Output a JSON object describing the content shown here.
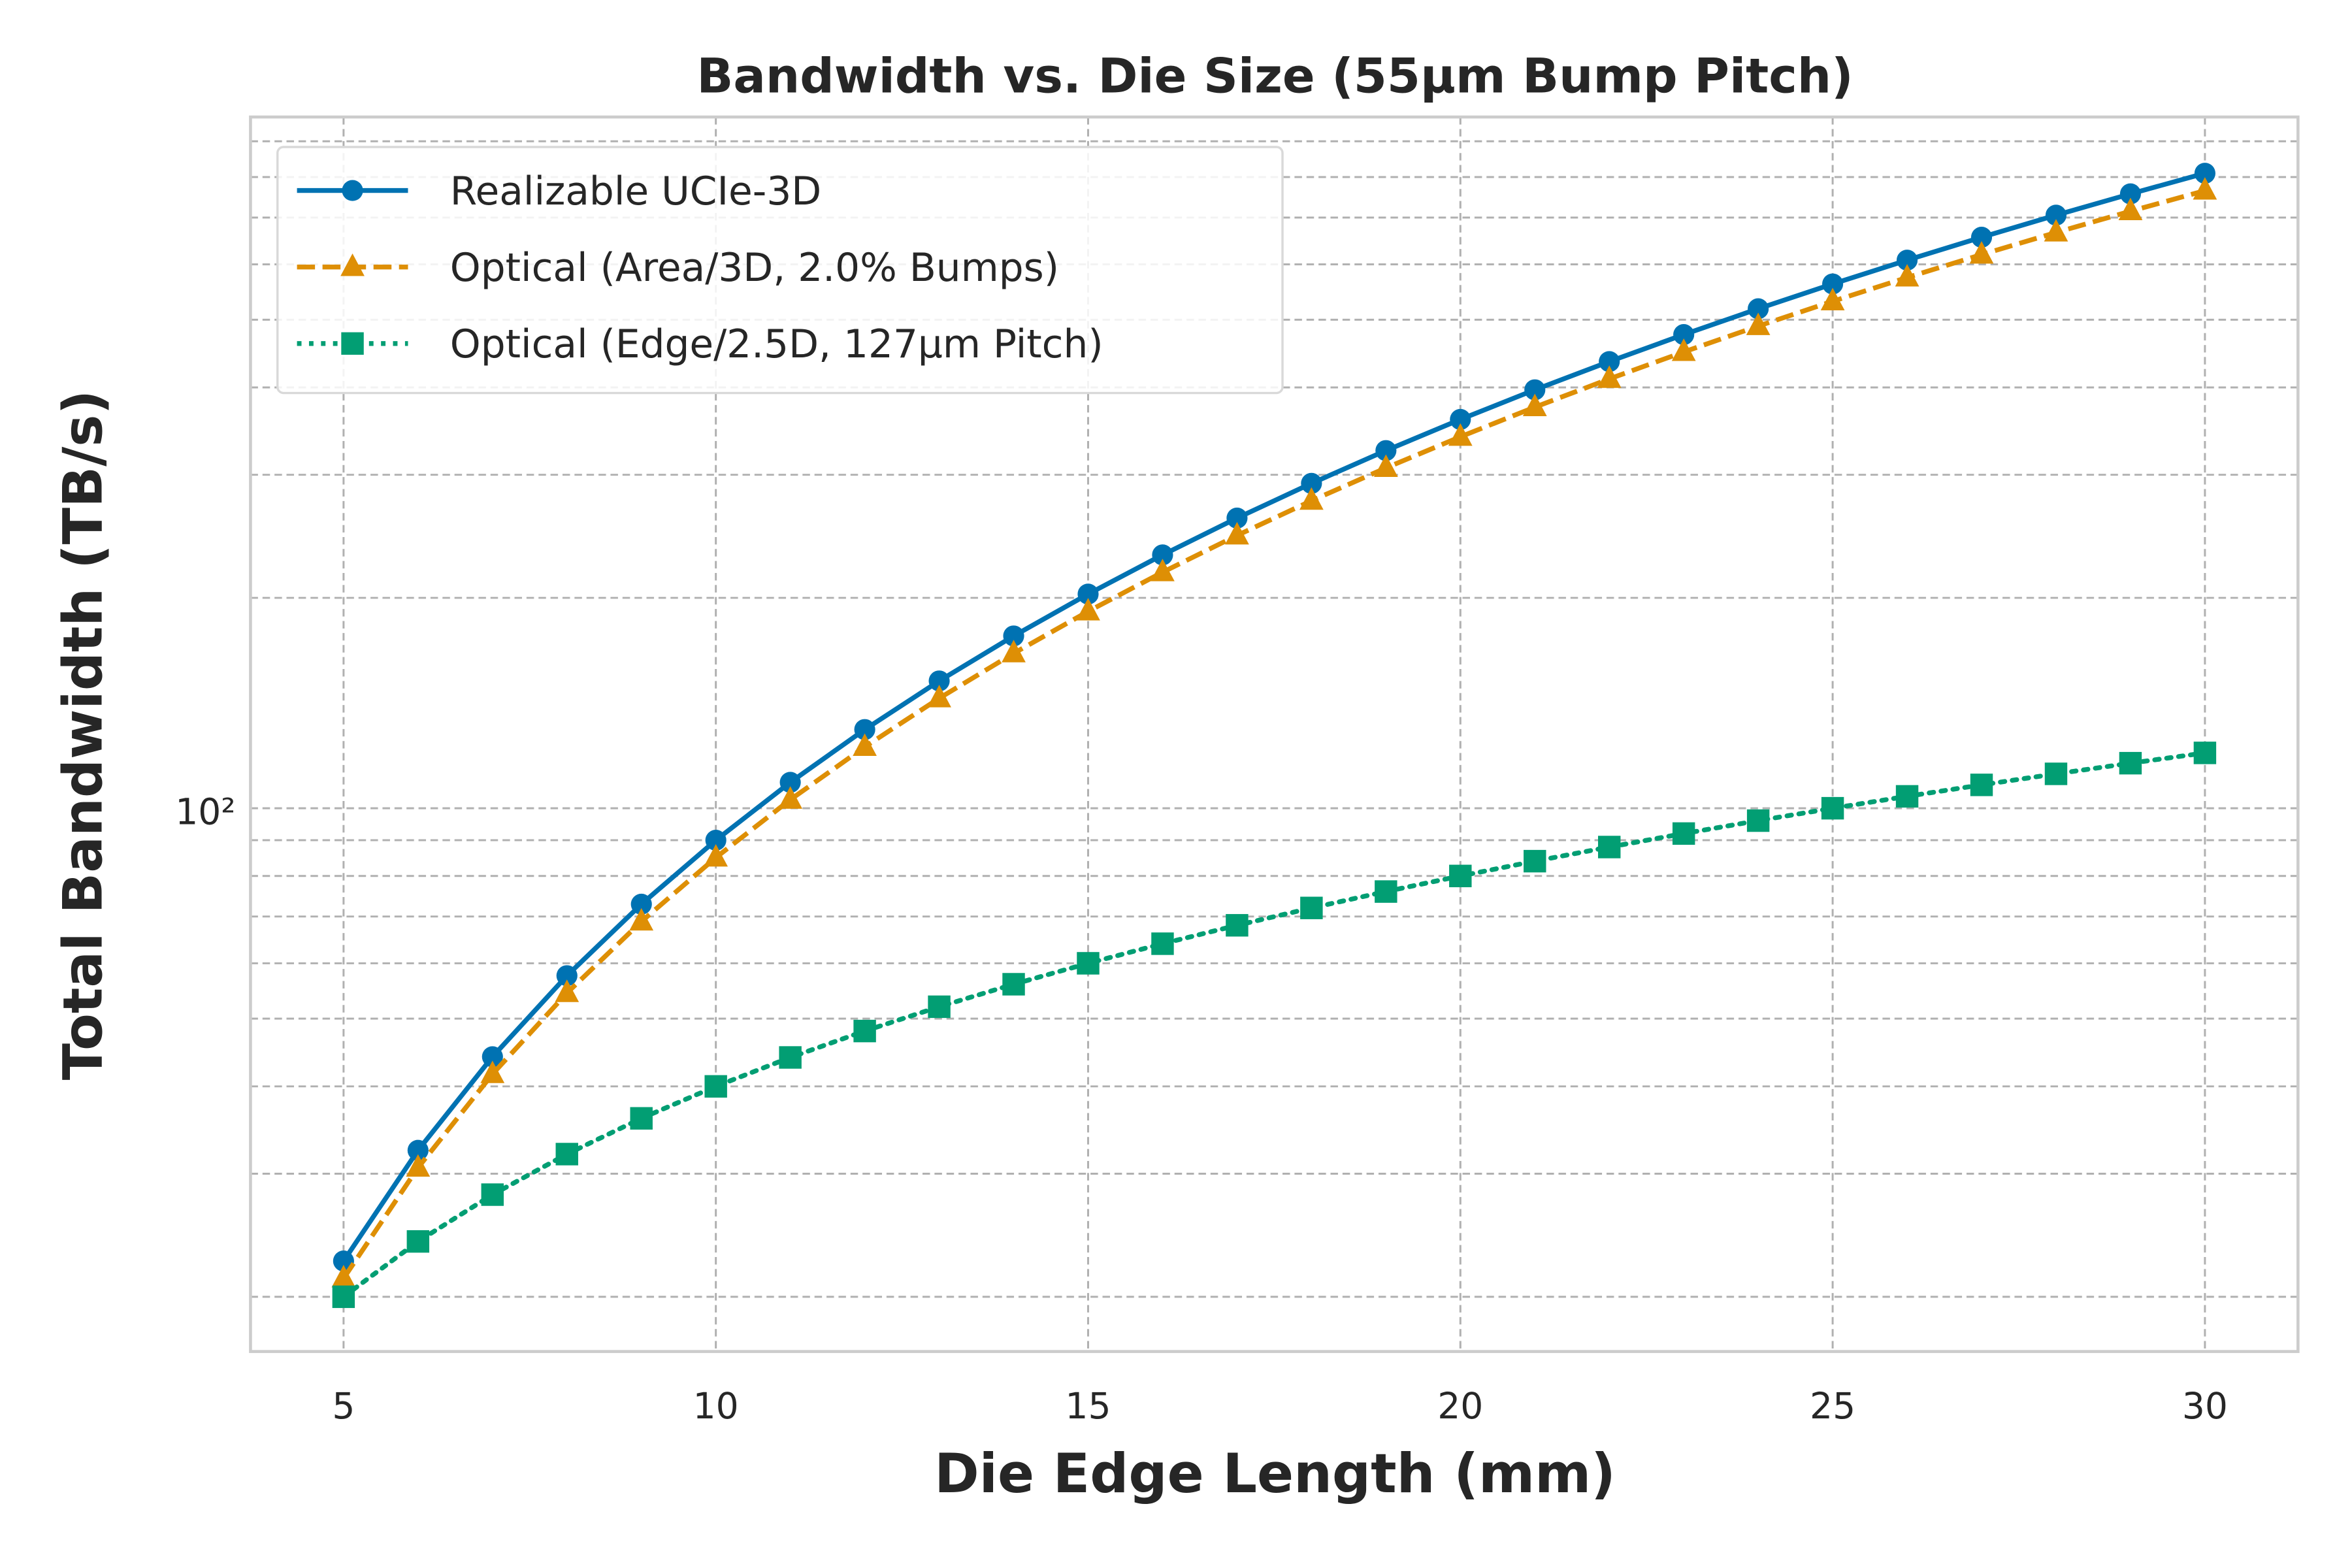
{
  "chart_data": {
    "type": "line",
    "title": "Bandwidth vs. Die Size (55µm Bump Pitch)",
    "xlabel": "Die Edge Length (mm)",
    "ylabel": "Total Bandwidth (TB/s)",
    "x": [
      5,
      6,
      7,
      8,
      9,
      10,
      11,
      12,
      13,
      14,
      15,
      16,
      17,
      18,
      19,
      20,
      21,
      22,
      23,
      24,
      25,
      26,
      27,
      28,
      29,
      30
    ],
    "series": [
      {
        "name": "Realizable UCIe-3D",
        "color": "#0072b2",
        "linestyle": "solid",
        "marker": "circle",
        "values": [
          22.5,
          32.4,
          44.1,
          57.6,
          72.9,
          90,
          108.9,
          129.6,
          152.1,
          176.4,
          202.5,
          230.4,
          260.1,
          291.6,
          324.9,
          360,
          396.9,
          435.6,
          476.1,
          518.4,
          562.5,
          608.4,
          656.1,
          705.6,
          756.9,
          810
        ]
      },
      {
        "name": "Optical (Area/3D, 2.0% Bumps)",
        "color": "#de8f05",
        "linestyle": "dashed",
        "marker": "triangle",
        "values": [
          21.25,
          30.6,
          41.65,
          54.4,
          68.85,
          85,
          102.85,
          122.4,
          143.65,
          166.6,
          191.25,
          217.6,
          245.65,
          275.4,
          306.85,
          340,
          374.85,
          411.4,
          449.65,
          489.6,
          531.25,
          574.6,
          619.65,
          666.4,
          714.85,
          765
        ]
      },
      {
        "name": "Optical (Edge/2.5D, 127µm Pitch)",
        "color": "#029e73",
        "linestyle": "dotted",
        "marker": "square",
        "values": [
          20,
          24,
          28,
          32,
          36,
          40,
          44,
          48,
          52,
          56,
          60,
          64,
          68,
          72,
          76,
          80,
          84,
          88,
          92,
          96,
          100,
          104,
          108,
          112,
          116,
          120
        ]
      }
    ],
    "xlim": [
      3.75,
      31.25
    ],
    "xticks": [
      5,
      10,
      15,
      20,
      25,
      30
    ],
    "ylim": [
      16.7,
      975
    ],
    "yscale": "log",
    "yticks": [
      {
        "value": 100,
        "label": "10²"
      }
    ],
    "yminorticks": [
      20,
      30,
      40,
      50,
      60,
      70,
      80,
      90,
      200,
      300,
      400,
      500,
      600,
      700,
      800,
      900
    ],
    "grid": true,
    "legend": "upper left"
  }
}
